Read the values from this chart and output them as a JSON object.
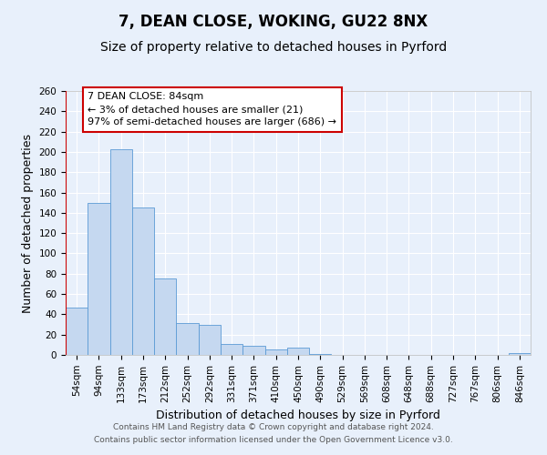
{
  "title": "7, DEAN CLOSE, WOKING, GU22 8NX",
  "subtitle": "Size of property relative to detached houses in Pyrford",
  "xlabel": "Distribution of detached houses by size in Pyrford",
  "ylabel": "Number of detached properties",
  "bar_color": "#c5d8f0",
  "bar_edge_color": "#5b9bd5",
  "categories": [
    "54sqm",
    "94sqm",
    "133sqm",
    "173sqm",
    "212sqm",
    "252sqm",
    "292sqm",
    "331sqm",
    "371sqm",
    "410sqm",
    "450sqm",
    "490sqm",
    "529sqm",
    "569sqm",
    "608sqm",
    "648sqm",
    "688sqm",
    "727sqm",
    "767sqm",
    "806sqm",
    "846sqm"
  ],
  "values": [
    47,
    150,
    203,
    145,
    75,
    31,
    30,
    11,
    9,
    5,
    7,
    1,
    0,
    0,
    0,
    0,
    0,
    0,
    0,
    0,
    2
  ],
  "ylim": [
    0,
    260
  ],
  "yticks": [
    0,
    20,
    40,
    60,
    80,
    100,
    120,
    140,
    160,
    180,
    200,
    220,
    240,
    260
  ],
  "marker_label": "7 DEAN CLOSE: 84sqm",
  "marker_line_color": "#cc0000",
  "annotation_smaller": "← 3% of detached houses are smaller (21)",
  "annotation_larger": "97% of semi-detached houses are larger (686) →",
  "annotation_box_color": "#ffffff",
  "annotation_box_edge_color": "#cc0000",
  "footer1": "Contains HM Land Registry data © Crown copyright and database right 2024.",
  "footer2": "Contains public sector information licensed under the Open Government Licence v3.0.",
  "background_color": "#e8f0fb",
  "grid_color": "#ffffff",
  "title_fontsize": 12,
  "subtitle_fontsize": 10,
  "axis_label_fontsize": 9,
  "tick_fontsize": 7.5,
  "footer_fontsize": 6.5,
  "annotation_fontsize": 8
}
